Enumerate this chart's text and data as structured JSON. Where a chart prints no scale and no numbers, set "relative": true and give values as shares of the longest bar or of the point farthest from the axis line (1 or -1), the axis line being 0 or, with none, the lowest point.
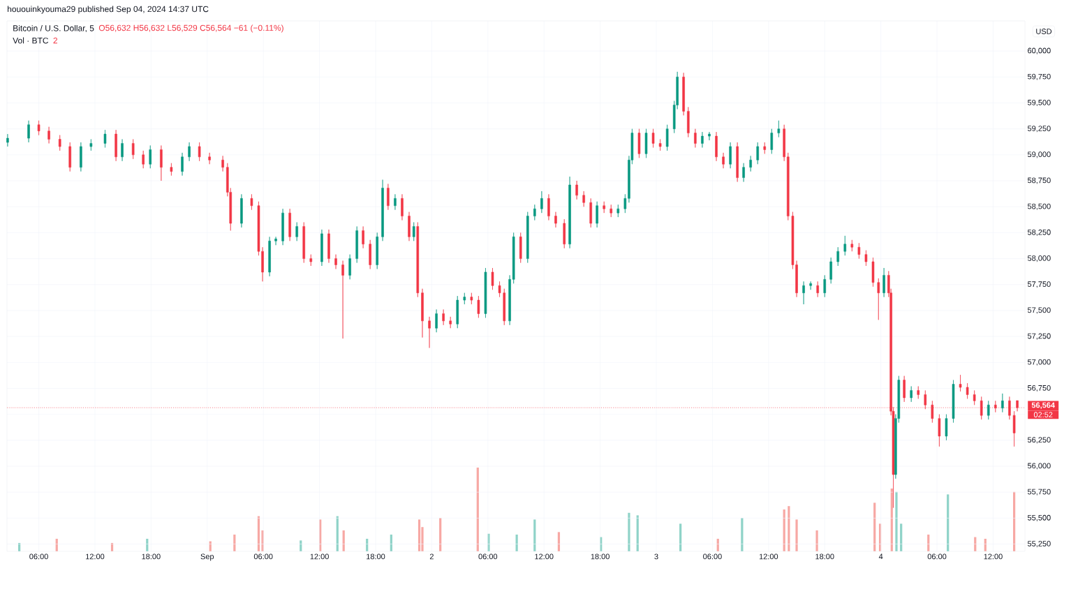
{
  "chart_data": [
    {
      "type": "candlestick",
      "title": "Bitcoin / U.S. Dollar, 5",
      "subtitle": "O56,632 H56,632 L56,529 C56,564 −61 (−0.11%)",
      "ylabel": "USD",
      "annotations": [
        "hououinkyouma29 published Sep 04, 2024 14:37 UTC",
        "02:52"
      ],
      "x": [
        "2024-08-31T02:40",
        "2024-08-31T04:55",
        "2024-08-31T06:00",
        "2024-08-31T07:05",
        "2024-08-31T08:15",
        "2024-08-31T09:20",
        "2024-08-31T10:30",
        "2024-08-31T11:35",
        "2024-08-31T13:05",
        "2024-08-31T14:15",
        "2024-08-31T14:55",
        "2024-08-31T16:05",
        "2024-08-31T17:10",
        "2024-08-31T17:55",
        "2024-08-31T19:05",
        "2024-08-31T20:10",
        "2024-08-31T21:20",
        "2024-08-31T22:05",
        "2024-08-31T23:10",
        "2024-09-01T00:15",
        "2024-09-01T01:40",
        "2024-09-01T02:10",
        "2024-09-01T02:30",
        "2024-09-01T03:40",
        "2024-09-01T04:45",
        "2024-09-01T05:30",
        "2024-09-01T05:55",
        "2024-09-01T06:40",
        "2024-09-01T07:20",
        "2024-09-01T08:05",
        "2024-09-01T08:50",
        "2024-09-01T09:35",
        "2024-09-01T10:20",
        "2024-09-01T11:05",
        "2024-09-01T12:15",
        "2024-09-01T13:00",
        "2024-09-01T13:45",
        "2024-09-01T14:30",
        "2024-09-01T15:15",
        "2024-09-01T16:00",
        "2024-09-01T16:40",
        "2024-09-01T17:25",
        "2024-09-01T18:10",
        "2024-09-01T18:45",
        "2024-09-01T19:20",
        "2024-09-01T20:05",
        "2024-09-01T20:50",
        "2024-09-01T21:35",
        "2024-09-01T22:05",
        "2024-09-01T22:30",
        "2024-09-01T23:00",
        "2024-09-01T23:45",
        "2024-09-02T00:30",
        "2024-09-02T01:15",
        "2024-09-02T02:00",
        "2024-09-02T02:45",
        "2024-09-02T03:30",
        "2024-09-02T04:15",
        "2024-09-02T05:00",
        "2024-09-02T05:45",
        "2024-09-02T06:30",
        "2024-09-02T07:15",
        "2024-09-02T07:45",
        "2024-09-02T08:20",
        "2024-09-02T08:45",
        "2024-09-02T09:30",
        "2024-09-02T10:15",
        "2024-09-02T11:00",
        "2024-09-02T11:45",
        "2024-09-02T12:30",
        "2024-09-02T13:15",
        "2024-09-02T14:10",
        "2024-09-02T14:45",
        "2024-09-02T15:30",
        "2024-09-02T16:15",
        "2024-09-02T17:00",
        "2024-09-02T17:40",
        "2024-09-02T18:25",
        "2024-09-02T19:10",
        "2024-09-02T19:55",
        "2024-09-02T20:40",
        "2024-09-02T21:05",
        "2024-09-02T21:25",
        "2024-09-02T22:10",
        "2024-09-02T22:55",
        "2024-09-02T23:40",
        "2024-09-03T00:25",
        "2024-09-03T01:10",
        "2024-09-03T01:55",
        "2024-09-03T02:15",
        "2024-09-03T02:55",
        "2024-09-03T03:25",
        "2024-09-03T04:10",
        "2024-09-03T04:55",
        "2024-09-03T05:40",
        "2024-09-03T06:25",
        "2024-09-03T07:10",
        "2024-09-03T07:55",
        "2024-09-03T08:40",
        "2024-09-03T09:20",
        "2024-09-03T10:05",
        "2024-09-03T10:50",
        "2024-09-03T11:35",
        "2024-09-03T12:20",
        "2024-09-03T13:05",
        "2024-09-03T13:40",
        "2024-09-03T14:05",
        "2024-09-03T14:35",
        "2024-09-03T15:00",
        "2024-09-03T15:45",
        "2024-09-03T16:30",
        "2024-09-03T17:15",
        "2024-09-03T18:00",
        "2024-09-03T18:40",
        "2024-09-03T19:25",
        "2024-09-03T20:10",
        "2024-09-03T20:55",
        "2024-09-03T21:40",
        "2024-09-03T22:25",
        "2024-09-03T23:10",
        "2024-09-03T23:45",
        "2024-09-04T00:20",
        "2024-09-04T00:50",
        "2024-09-04T01:05",
        "2024-09-04T01:20",
        "2024-09-04T01:35",
        "2024-09-04T01:55",
        "2024-09-04T02:30",
        "2024-09-04T03:15",
        "2024-09-04T04:00",
        "2024-09-04T04:45",
        "2024-09-04T05:30",
        "2024-09-04T06:15",
        "2024-09-04T07:00",
        "2024-09-04T07:45",
        "2024-09-04T08:30",
        "2024-09-04T09:15",
        "2024-09-04T10:00",
        "2024-09-04T10:45",
        "2024-09-04T11:30",
        "2024-09-04T12:15",
        "2024-09-04T13:00",
        "2024-09-04T13:45",
        "2024-09-04T14:15",
        "2024-09-04T14:35"
      ],
      "ohlc": [
        [
          59120,
          59200,
          59080,
          59160
        ],
        [
          59160,
          59330,
          59120,
          59290
        ],
        [
          59290,
          59330,
          59190,
          59230
        ],
        [
          59230,
          59270,
          59110,
          59150
        ],
        [
          59150,
          59190,
          59040,
          59080
        ],
        [
          59080,
          59120,
          58840,
          58880
        ],
        [
          58880,
          59120,
          58840,
          59080
        ],
        [
          59080,
          59150,
          59040,
          59110
        ],
        [
          59110,
          59240,
          59070,
          59200
        ],
        [
          59200,
          59240,
          58940,
          58980
        ],
        [
          58980,
          59150,
          58940,
          59110
        ],
        [
          59110,
          59150,
          58960,
          59000
        ],
        [
          59000,
          59040,
          58870,
          58910
        ],
        [
          58910,
          59090,
          58870,
          59050
        ],
        [
          59050,
          59090,
          58750,
          58880
        ],
        [
          58880,
          58920,
          58800,
          58840
        ],
        [
          58840,
          59020,
          58800,
          58980
        ],
        [
          58980,
          59120,
          58940,
          59080
        ],
        [
          59080,
          59120,
          58940,
          58980
        ],
        [
          58980,
          59020,
          58910,
          58950
        ],
        [
          58950,
          58990,
          58840,
          58880
        ],
        [
          58880,
          58920,
          58600,
          58640
        ],
        [
          58640,
          58680,
          58270,
          58340
        ],
        [
          58340,
          58620,
          58300,
          58580
        ],
        [
          58580,
          58620,
          58470,
          58510
        ],
        [
          58510,
          58550,
          58030,
          58070
        ],
        [
          58070,
          58110,
          57780,
          57870
        ],
        [
          57870,
          58210,
          57830,
          58170
        ],
        [
          58170,
          58210,
          58130,
          58190
        ],
        [
          58170,
          58480,
          58130,
          58440
        ],
        [
          58440,
          58480,
          58170,
          58210
        ],
        [
          58210,
          58350,
          58170,
          58310
        ],
        [
          58310,
          58350,
          57960,
          58000
        ],
        [
          58000,
          58040,
          57930,
          57970
        ],
        [
          57970,
          58280,
          57930,
          58240
        ],
        [
          58240,
          58280,
          57960,
          58000
        ],
        [
          58000,
          58040,
          57900,
          57940
        ],
        [
          57940,
          57980,
          57230,
          57840
        ],
        [
          57840,
          58040,
          57800,
          58000
        ],
        [
          58000,
          58310,
          57960,
          58270
        ],
        [
          58270,
          58310,
          58100,
          58140
        ],
        [
          58140,
          58180,
          57900,
          57940
        ],
        [
          57940,
          58250,
          57900,
          58210
        ],
        [
          58210,
          58760,
          58170,
          58680
        ],
        [
          58680,
          58720,
          58470,
          58510
        ],
        [
          58510,
          58620,
          58470,
          58580
        ],
        [
          58580,
          58620,
          58370,
          58410
        ],
        [
          58410,
          58450,
          58170,
          58210
        ],
        [
          58210,
          58350,
          58170,
          58310
        ],
        [
          58310,
          58350,
          57630,
          57670
        ],
        [
          57670,
          57710,
          57240,
          57400
        ],
        [
          57400,
          57440,
          57140,
          57330
        ],
        [
          57330,
          57510,
          57290,
          57470
        ],
        [
          57470,
          57510,
          57360,
          57400
        ],
        [
          57400,
          57440,
          57330,
          57370
        ],
        [
          57370,
          57640,
          57330,
          57600
        ],
        [
          57600,
          57670,
          57560,
          57630
        ],
        [
          57630,
          57670,
          57560,
          57600
        ],
        [
          57600,
          57640,
          57430,
          57470
        ],
        [
          57470,
          57910,
          57430,
          57870
        ],
        [
          57870,
          57910,
          57700,
          57740
        ],
        [
          57740,
          57780,
          57630,
          57670
        ],
        [
          57670,
          57710,
          57360,
          57400
        ],
        [
          57400,
          57840,
          57360,
          57800
        ],
        [
          57800,
          58250,
          57760,
          58210
        ],
        [
          58210,
          58250,
          57960,
          58000
        ],
        [
          58000,
          58450,
          57960,
          58410
        ],
        [
          58410,
          58520,
          58370,
          58480
        ],
        [
          58480,
          58650,
          58440,
          58580
        ],
        [
          58580,
          58620,
          58370,
          58410
        ],
        [
          58410,
          58450,
          58300,
          58340
        ],
        [
          58340,
          58380,
          58100,
          58140
        ],
        [
          58140,
          58790,
          58100,
          58710
        ],
        [
          58710,
          58750,
          58570,
          58610
        ],
        [
          58610,
          58650,
          58500,
          58540
        ],
        [
          58540,
          58580,
          58300,
          58340
        ],
        [
          58340,
          58550,
          58300,
          58510
        ],
        [
          58510,
          58550,
          58440,
          58480
        ],
        [
          58480,
          58520,
          58400,
          58440
        ],
        [
          58440,
          58520,
          58400,
          58480
        ],
        [
          58480,
          58620,
          58440,
          58580
        ],
        [
          58580,
          58990,
          58540,
          58950
        ],
        [
          58950,
          59250,
          58910,
          59210
        ],
        [
          59210,
          59250,
          58970,
          59010
        ],
        [
          59010,
          59250,
          58970,
          59210
        ],
        [
          59210,
          59250,
          59070,
          59110
        ],
        [
          59110,
          59150,
          59040,
          59080
        ],
        [
          59080,
          59290,
          59040,
          59250
        ],
        [
          59250,
          59520,
          59210,
          59480
        ],
        [
          59480,
          59800,
          59440,
          59750
        ],
        [
          59750,
          59790,
          59380,
          59420
        ],
        [
          59420,
          59460,
          59170,
          59210
        ],
        [
          59210,
          59250,
          59070,
          59110
        ],
        [
          59110,
          59220,
          59070,
          59180
        ],
        [
          59180,
          59220,
          59140,
          59200
        ],
        [
          59180,
          59220,
          58940,
          58980
        ],
        [
          58980,
          59020,
          58870,
          58910
        ],
        [
          58910,
          59120,
          58870,
          59080
        ],
        [
          59080,
          59120,
          58740,
          58780
        ],
        [
          58780,
          58920,
          58740,
          58880
        ],
        [
          58880,
          58990,
          58840,
          58950
        ],
        [
          58950,
          59120,
          58910,
          59080
        ],
        [
          59080,
          59120,
          59010,
          59050
        ],
        [
          59050,
          59250,
          59010,
          59210
        ],
        [
          59210,
          59330,
          59170,
          59250
        ],
        [
          59250,
          59290,
          58940,
          58980
        ],
        [
          58980,
          59020,
          58370,
          58410
        ],
        [
          58410,
          58450,
          57900,
          57940
        ],
        [
          57940,
          57980,
          57630,
          57670
        ],
        [
          57670,
          57780,
          57560,
          57740
        ],
        [
          57740,
          57780,
          57700,
          57760
        ],
        [
          57740,
          57780,
          57630,
          57670
        ],
        [
          57670,
          57840,
          57630,
          57800
        ],
        [
          57800,
          58010,
          57760,
          57970
        ],
        [
          57970,
          58110,
          57930,
          58070
        ],
        [
          58070,
          58220,
          58030,
          58140
        ],
        [
          58140,
          58180,
          58070,
          58110
        ],
        [
          58110,
          58150,
          58000,
          58040
        ],
        [
          58040,
          58080,
          57930,
          57970
        ],
        [
          57970,
          58010,
          57730,
          57770
        ],
        [
          57770,
          57810,
          57410,
          57670
        ],
        [
          57670,
          57910,
          57630,
          57840
        ],
        [
          57840,
          57880,
          57630,
          57670
        ],
        [
          57670,
          57710,
          56490,
          56530
        ],
        [
          56530,
          56570,
          55600,
          55920
        ],
        [
          55920,
          56500,
          55880,
          56460
        ],
        [
          56460,
          56870,
          56420,
          56830
        ],
        [
          56830,
          56870,
          56620,
          56660
        ],
        [
          56660,
          56770,
          56620,
          56730
        ],
        [
          56730,
          56770,
          56650,
          56690
        ],
        [
          56690,
          56730,
          56550,
          56590
        ],
        [
          56590,
          56630,
          56420,
          56460
        ],
        [
          56460,
          56500,
          56190,
          56290
        ],
        [
          56290,
          56500,
          56250,
          56460
        ],
        [
          56460,
          56830,
          56420,
          56790
        ],
        [
          56790,
          56880,
          56720,
          56760
        ],
        [
          56760,
          56800,
          56650,
          56690
        ],
        [
          56690,
          56730,
          56590,
          56630
        ],
        [
          56630,
          56670,
          56450,
          56490
        ],
        [
          56490,
          56630,
          56450,
          56590
        ],
        [
          56590,
          56630,
          56520,
          56560
        ],
        [
          56560,
          56700,
          56520,
          56630
        ],
        [
          56630,
          56670,
          56450,
          56490
        ],
        [
          56490,
          56530,
          56190,
          56320
        ],
        [
          56632,
          56632,
          56529,
          56564
        ]
      ],
      "colors": [
        "#089981",
        "#089981",
        "#f23645",
        "#f23645",
        "#f23645",
        "#f23645",
        "#089981",
        "#089981",
        "#089981",
        "#f23645",
        "#089981",
        "#f23645",
        "#f23645",
        "#089981",
        "#f23645",
        "#f23645",
        "#089981",
        "#089981",
        "#f23645",
        "#f23645",
        "#f23645",
        "#f23645",
        "#f23645",
        "#089981",
        "#f23645",
        "#f23645",
        "#f23645",
        "#089981",
        "#089981",
        "#089981",
        "#f23645",
        "#089981",
        "#f23645",
        "#f23645",
        "#089981",
        "#f23645",
        "#f23645",
        "#f23645",
        "#089981",
        "#089981",
        "#f23645",
        "#f23645",
        "#089981",
        "#089981",
        "#f23645",
        "#089981",
        "#f23645",
        "#f23645",
        "#089981",
        "#f23645",
        "#f23645",
        "#f23645",
        "#089981",
        "#f23645",
        "#f23645",
        "#089981",
        "#089981",
        "#f23645",
        "#f23645",
        "#089981",
        "#f23645",
        "#f23645",
        "#f23645",
        "#089981",
        "#089981",
        "#f23645",
        "#089981",
        "#089981",
        "#089981",
        "#f23645",
        "#f23645",
        "#f23645",
        "#089981",
        "#f23645",
        "#f23645",
        "#f23645",
        "#089981",
        "#f23645",
        "#f23645",
        "#089981",
        "#089981",
        "#089981",
        "#089981",
        "#f23645",
        "#089981",
        "#f23645",
        "#f23645",
        "#089981",
        "#089981",
        "#089981",
        "#f23645",
        "#f23645",
        "#f23645",
        "#089981",
        "#089981",
        "#f23645",
        "#f23645",
        "#089981",
        "#f23645",
        "#089981",
        "#089981",
        "#089981",
        "#f23645",
        "#089981",
        "#089981",
        "#f23645",
        "#f23645",
        "#f23645",
        "#f23645",
        "#089981",
        "#089981",
        "#f23645",
        "#089981",
        "#089981",
        "#089981",
        "#089981",
        "#f23645",
        "#f23645",
        "#f23645",
        "#f23645",
        "#f23645",
        "#089981",
        "#f23645",
        "#f23645",
        "#f23645",
        "#089981",
        "#089981",
        "#f23645",
        "#089981",
        "#f23645",
        "#f23645",
        "#f23645",
        "#f23645",
        "#089981",
        "#089981",
        "#f23645",
        "#f23645",
        "#f23645",
        "#f23645",
        "#089981",
        "#f23645",
        "#089981",
        "#f23645",
        "#f23645",
        "#f23645"
      ],
      "xlim": [
        "2024-08-31T02:36",
        "2024-09-04T15:24"
      ],
      "ylim": [
        55180,
        60290
      ],
      "xticks": [
        {
          "value": "2024-08-31T06:00",
          "label": "06:00"
        },
        {
          "value": "2024-08-31T12:00",
          "label": "12:00"
        },
        {
          "value": "2024-08-31T18:00",
          "label": "18:00"
        },
        {
          "value": "2024-09-01T00:00",
          "label": "Sep"
        },
        {
          "value": "2024-09-01T06:00",
          "label": "06:00"
        },
        {
          "value": "2024-09-01T12:00",
          "label": "12:00"
        },
        {
          "value": "2024-09-01T18:00",
          "label": "18:00"
        },
        {
          "value": "2024-09-02T00:00",
          "label": "2"
        },
        {
          "value": "2024-09-02T06:00",
          "label": "06:00"
        },
        {
          "value": "2024-09-02T12:00",
          "label": "12:00"
        },
        {
          "value": "2024-09-02T18:00",
          "label": "18:00"
        },
        {
          "value": "2024-09-03T00:00",
          "label": "3"
        },
        {
          "value": "2024-09-03T06:00",
          "label": "06:00"
        },
        {
          "value": "2024-09-03T12:00",
          "label": "12:00"
        },
        {
          "value": "2024-09-03T18:00",
          "label": "18:00"
        },
        {
          "value": "2024-09-04T00:00",
          "label": "4"
        },
        {
          "value": "2024-09-04T06:00",
          "label": "06:00"
        },
        {
          "value": "2024-09-04T12:00",
          "label": "12:00"
        }
      ],
      "yticks": [
        {
          "value": 55250,
          "label": "55,250"
        },
        {
          "value": 55500,
          "label": "55,500"
        },
        {
          "value": 55750,
          "label": "55,750"
        },
        {
          "value": 56000,
          "label": "56,000"
        },
        {
          "value": 56250,
          "label": "56,250"
        },
        {
          "value": 56500,
          "label": null
        },
        {
          "value": 56750,
          "label": "56,750"
        },
        {
          "value": 57000,
          "label": "57,000"
        },
        {
          "value": 57250,
          "label": "57,250"
        },
        {
          "value": 57500,
          "label": "57,500"
        },
        {
          "value": 57750,
          "label": "57,750"
        },
        {
          "value": 58000,
          "label": "58,000"
        },
        {
          "value": 58250,
          "label": "58,250"
        },
        {
          "value": 58500,
          "label": "58,500"
        },
        {
          "value": 58750,
          "label": "58,750"
        },
        {
          "value": 59000,
          "label": "59,000"
        },
        {
          "value": 59250,
          "label": "59,250"
        },
        {
          "value": 59500,
          "label": "59,500"
        },
        {
          "value": 59750,
          "label": "59,750"
        },
        {
          "value": 60000,
          "label": "60,000"
        }
      ],
      "ref_lines": [
        {
          "axis": "y",
          "value": 56564,
          "label": "56,564",
          "color": "#f23645",
          "line_style": "dotted"
        }
      ],
      "grid": true
    },
    {
      "type": "bar",
      "title": "Vol · BTC",
      "annotations": [
        "2"
      ],
      "relative": true,
      "tick_labels": false,
      "xlim": [
        "2024-08-31T02:36",
        "2024-09-04T15:24"
      ],
      "x": [
        "2024-08-31T03:55",
        "2024-08-31T07:55",
        "2024-08-31T13:50",
        "2024-08-31T17:35",
        "2024-09-01T00:20",
        "2024-09-01T02:55",
        "2024-09-01T05:30",
        "2024-09-01T05:55",
        "2024-09-01T10:00",
        "2024-09-01T12:05",
        "2024-09-01T13:55",
        "2024-09-01T14:35",
        "2024-09-01T17:05",
        "2024-09-01T19:40",
        "2024-09-01T22:40",
        "2024-09-01T23:00",
        "2024-09-02T00:55",
        "2024-09-02T04:55",
        "2024-09-02T06:05",
        "2024-09-02T09:05",
        "2024-09-02T11:00",
        "2024-09-02T13:35",
        "2024-09-02T18:05",
        "2024-09-02T21:05",
        "2024-09-02T22:00",
        "2024-09-03T02:35",
        "2024-09-03T06:35",
        "2024-09-03T09:10",
        "2024-09-03T13:40",
        "2024-09-03T14:10",
        "2024-09-03T15:00",
        "2024-09-03T17:10",
        "2024-09-03T23:20",
        "2024-09-03T23:55",
        "2024-09-04T01:10",
        "2024-09-04T01:40",
        "2024-09-04T02:10",
        "2024-09-04T05:05",
        "2024-09-04T07:10",
        "2024-09-04T10:05",
        "2024-09-04T11:10",
        "2024-09-04T14:15"
      ],
      "values": [
        0.1,
        0.15,
        0.1,
        0.15,
        0.12,
        0.2,
        0.42,
        0.25,
        0.13,
        0.38,
        0.42,
        0.25,
        0.15,
        0.2,
        0.38,
        0.29,
        0.4,
        1,
        0.21,
        0.2,
        0.38,
        0.23,
        0.17,
        0.46,
        0.43,
        0.33,
        0.15,
        0.4,
        0.5,
        0.54,
        0.38,
        0.25,
        0.58,
        0.33,
        0.75,
        0.71,
        0.33,
        0.2,
        0.68,
        0.17,
        0.15,
        0.71
      ],
      "colors": [
        "#8fd3c8",
        "#f7a8a4",
        "#f7a8a4",
        "#8fd3c8",
        "#f7a8a4",
        "#f7a8a4",
        "#f7a8a4",
        "#f7a8a4",
        "#8fd3c8",
        "#f7a8a4",
        "#8fd3c8",
        "#f7a8a4",
        "#8fd3c8",
        "#8fd3c8",
        "#f7a8a4",
        "#f7a8a4",
        "#f7a8a4",
        "#f7a8a4",
        "#8fd3c8",
        "#8fd3c8",
        "#8fd3c8",
        "#f7a8a4",
        "#8fd3c8",
        "#8fd3c8",
        "#8fd3c8",
        "#8fd3c8",
        "#f7a8a4",
        "#8fd3c8",
        "#f7a8a4",
        "#f7a8a4",
        "#f7a8a4",
        "#f7a8a4",
        "#f7a8a4",
        "#f7a8a4",
        "#f7a8a4",
        "#8fd3c8",
        "#8fd3c8",
        "#f7a8a4",
        "#8fd3c8",
        "#f7a8a4",
        "#f7a8a4",
        "#f7a8a4"
      ]
    }
  ]
}
